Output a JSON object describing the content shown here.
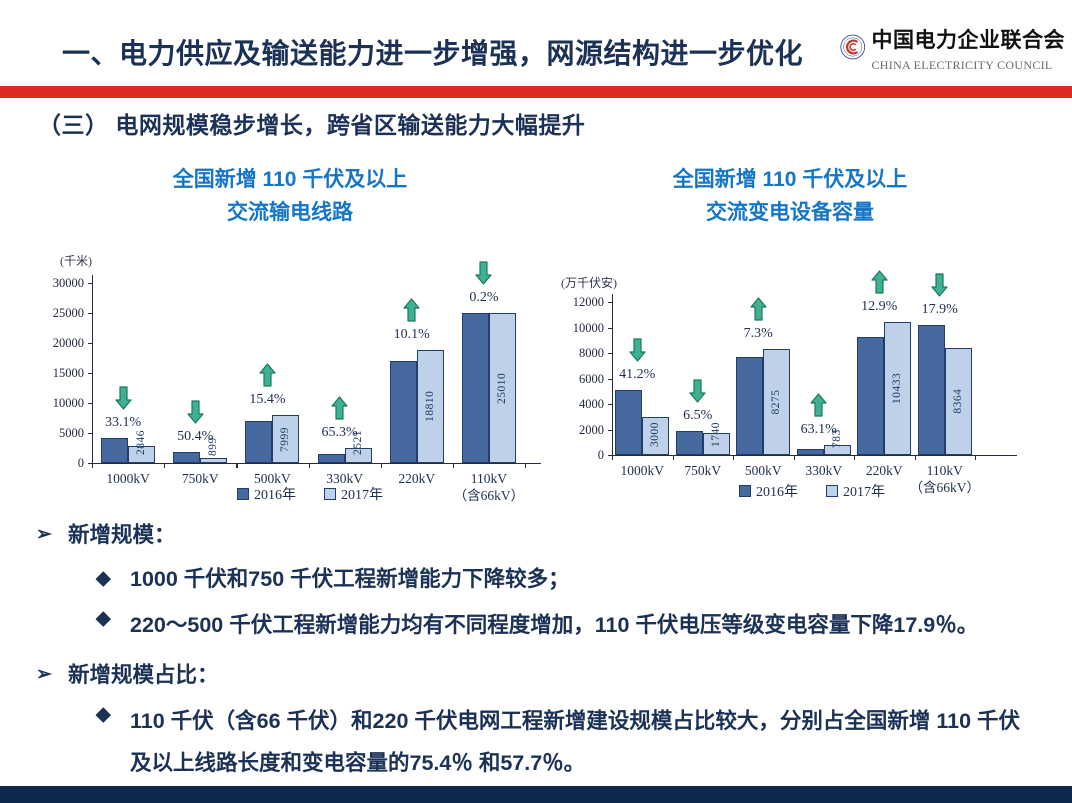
{
  "header": {
    "title": "一、电力供应及输送能力进一步增强，网源结构进一步优化",
    "logo_cn": "中国电力企业联合会",
    "logo_en": "CHINA ELECTRICITY COUNCIL"
  },
  "section_title": "（三） 电网规模稳步增长，跨省区输送能力大幅提升",
  "chart_data": [
    {
      "type": "bar",
      "title_line1": "全国新增 110 千伏及以上",
      "title_line2": "交流输电线路",
      "unit": "(千米)",
      "ylabel": "千米",
      "categories": [
        "1000kV",
        "750kV",
        "500kV",
        "330kV",
        "220kV",
        "110kV\n（含66kV）"
      ],
      "series": [
        {
          "name": "2016年",
          "values": [
            4250,
            1810,
            6930,
            1520,
            17080,
            25060
          ]
        },
        {
          "name": "2017年",
          "values": [
            2846,
            899,
            7999,
            2521,
            18810,
            25010
          ]
        }
      ],
      "value_labels_2017": [
        "2846",
        "899",
        "7999",
        "2521",
        "18810",
        "25010"
      ],
      "changes": [
        {
          "direction": "down",
          "percent": "33.1%"
        },
        {
          "direction": "down",
          "percent": "50.4%"
        },
        {
          "direction": "up",
          "percent": "15.4%"
        },
        {
          "direction": "up",
          "percent": "65.3%"
        },
        {
          "direction": "up",
          "percent": "10.1%"
        },
        {
          "direction": "down",
          "percent": "0.2%"
        }
      ],
      "ylim": [
        0,
        30000
      ],
      "yticks": [
        0,
        5000,
        10000,
        15000,
        20000,
        25000,
        30000
      ],
      "legend": [
        "2016年",
        "2017年"
      ],
      "legend_position": "bottom",
      "grid": false
    },
    {
      "type": "bar",
      "title_line1": "全国新增 110 千伏及以上",
      "title_line2": "交流变电设备容量",
      "unit": "(万千伏安)",
      "ylabel": "万千伏安",
      "categories": [
        "1000kV",
        "750kV",
        "500kV",
        "330kV",
        "220kV",
        "110kV\n（含66kV）"
      ],
      "series": [
        {
          "name": "2016年",
          "values": [
            5100,
            1860,
            7710,
            480,
            9240,
            10190
          ]
        },
        {
          "name": "2017年",
          "values": [
            3000,
            1740,
            8275,
            783,
            10433,
            8364
          ]
        }
      ],
      "value_labels_2017": [
        "3000",
        "1740",
        "8275",
        "783",
        "10433",
        "8364"
      ],
      "changes": [
        {
          "direction": "down",
          "percent": "41.2%"
        },
        {
          "direction": "down",
          "percent": "6.5%"
        },
        {
          "direction": "up",
          "percent": "7.3%"
        },
        {
          "direction": "up",
          "percent": "63.1%"
        },
        {
          "direction": "up",
          "percent": "12.9%"
        },
        {
          "direction": "down",
          "percent": "17.9%"
        }
      ],
      "ylim": [
        0,
        12000
      ],
      "yticks": [
        0,
        2000,
        4000,
        6000,
        8000,
        10000,
        12000
      ],
      "legend": [
        "2016年",
        "2017年"
      ],
      "legend_position": "bottom",
      "grid": false
    }
  ],
  "bullets": [
    {
      "heading": "新增规模：",
      "items": [
        "1000 千伏和750 千伏工程新增能力下降较多；",
        "220～500 千伏工程新增能力均有不同程度增加，110 千伏电压等级变电容量下降17.9％。"
      ]
    },
    {
      "heading": "新增规模占比：",
      "items": [
        "110 千伏（含66 千伏）和220 千伏电网工程新增建设规模占比较大，分别占全国新增 110 千伏及以上线路长度和变电容量的75.4％ 和57.7％。"
      ]
    }
  ],
  "colors": {
    "accent_red": "#dc2a20",
    "navy_text": "#1b3156",
    "chart_title_blue": "#1576c8",
    "bar_2016": "#46699f",
    "bar_2017": "#bfd1e8",
    "bar_border": "#203d6b",
    "arrow_green_fill": "#3fb092",
    "arrow_green_stroke": "#187a5e",
    "footer_navy": "#0d2950"
  }
}
